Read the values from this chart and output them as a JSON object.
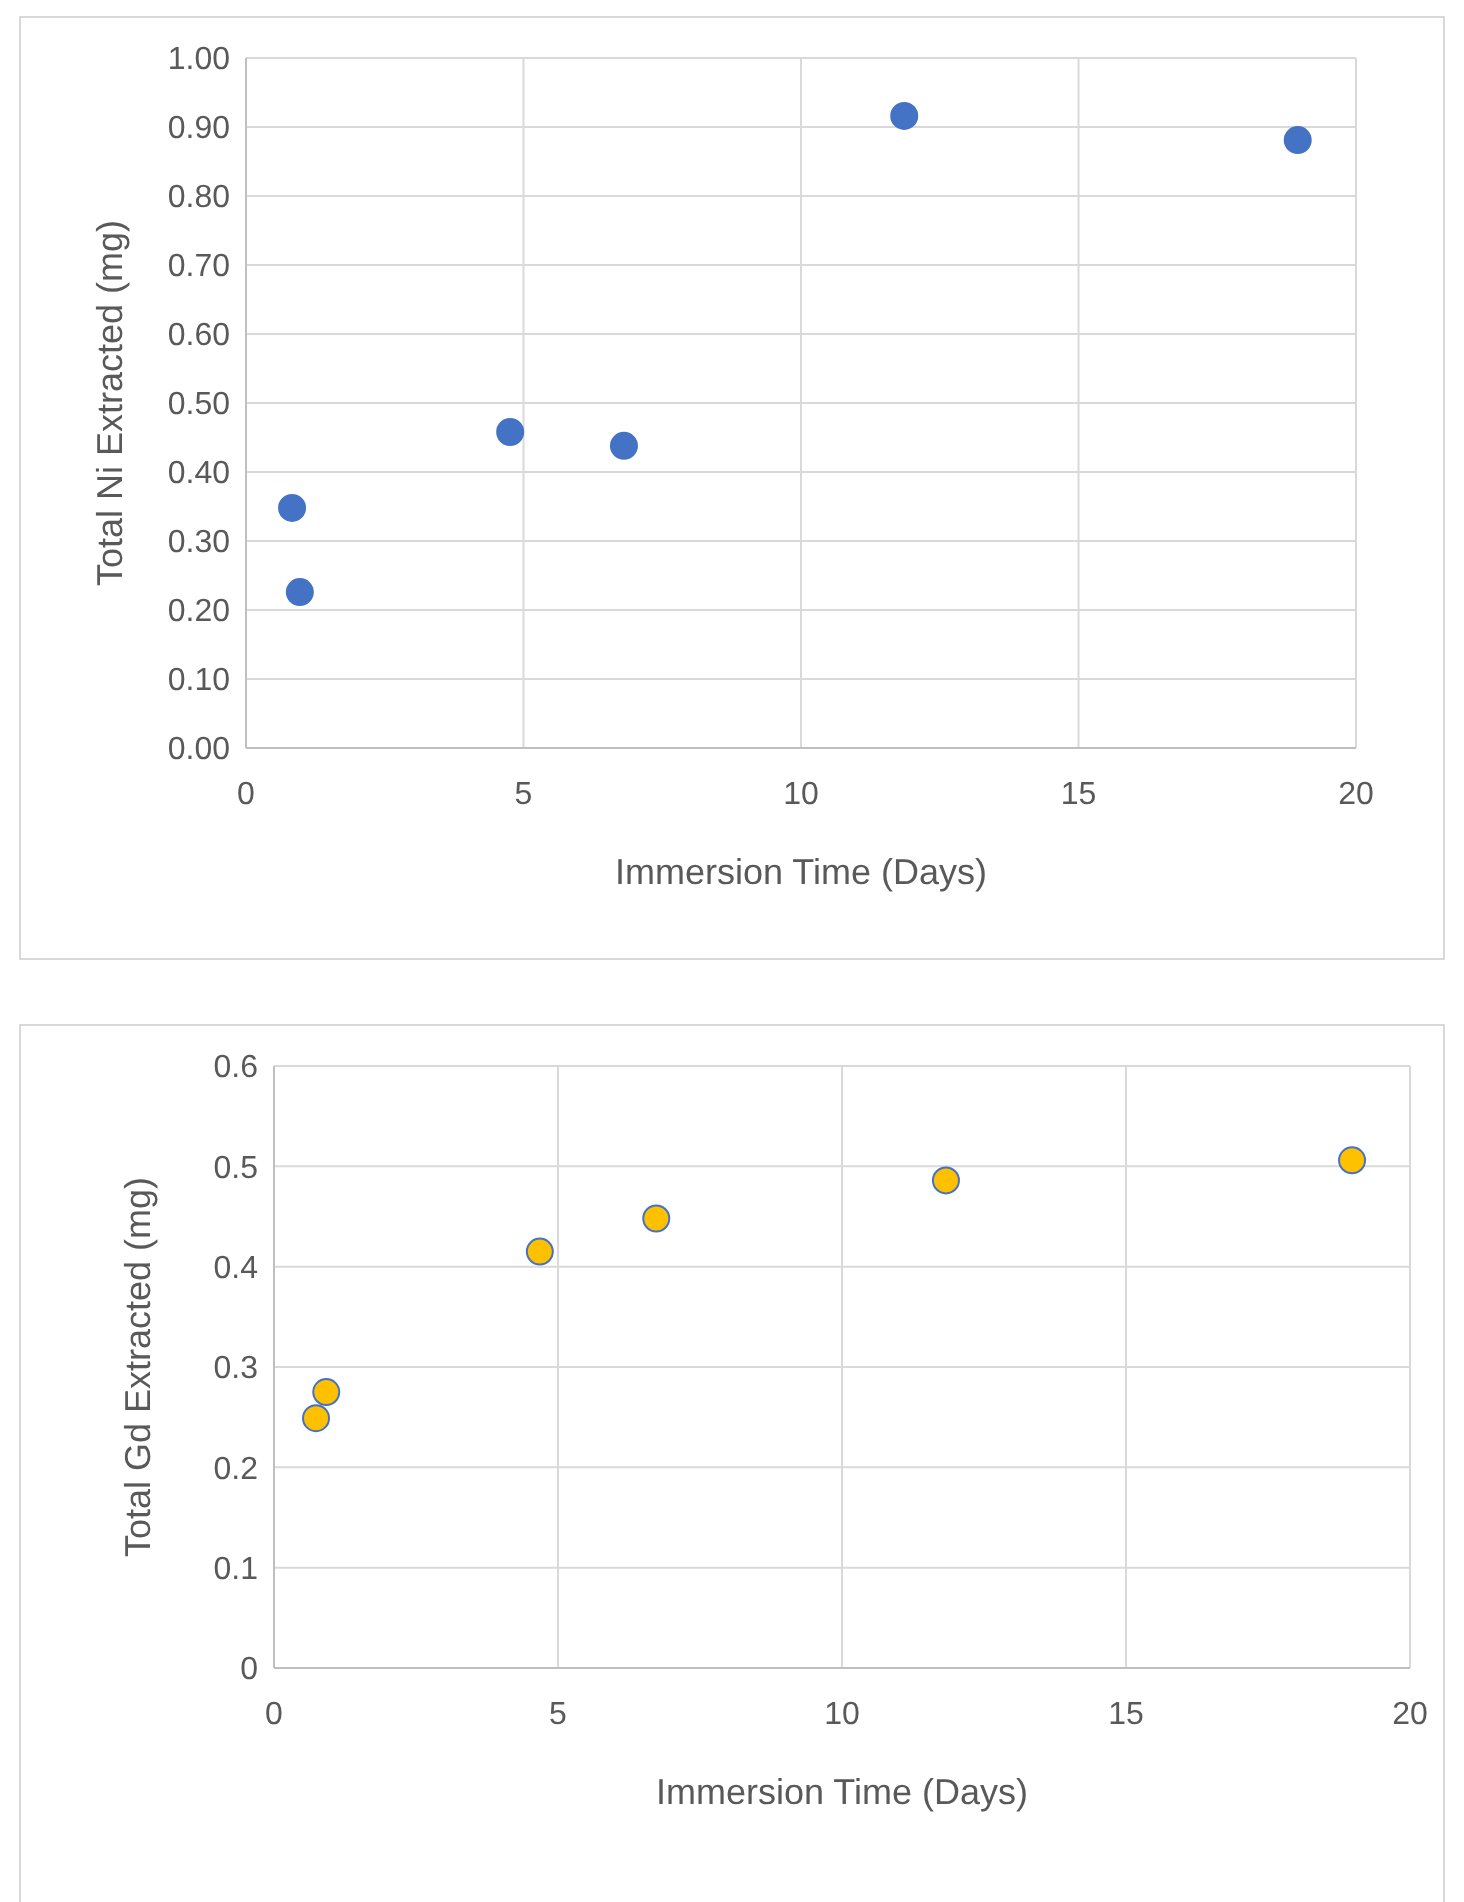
{
  "chart_data": [
    {
      "type": "scatter",
      "xlabel": "Immersion Time (Days)",
      "ylabel": "Total Ni Extracted (mg)",
      "xlim": [
        0,
        20
      ],
      "xticks": [
        0,
        5,
        10,
        15,
        20
      ],
      "ylim": [
        0,
        1
      ],
      "yticks": [
        {
          "value": 0,
          "label": "0.00"
        },
        {
          "value": 0.1,
          "label": "0.10"
        },
        {
          "value": 0.2,
          "label": "0.20"
        },
        {
          "value": 0.3,
          "label": "0.30"
        },
        {
          "value": 0.4,
          "label": "0.40"
        },
        {
          "value": 0.5,
          "label": "0.50"
        },
        {
          "value": 0.6,
          "label": "0.60"
        },
        {
          "value": 0.7,
          "label": "0.70"
        },
        {
          "value": 0.8,
          "label": "0.80"
        },
        {
          "value": 0.9,
          "label": "0.90"
        },
        {
          "value": 1,
          "label": "1.00"
        }
      ],
      "grid": true,
      "marker": "circle",
      "series": [
        {
          "color": "#4472c4",
          "x": [
            0.83,
            0.97,
            4.76,
            6.81,
            11.86,
            18.95
          ],
          "values": [
            0.348,
            0.226,
            0.458,
            0.438,
            0.916,
            0.881
          ]
        }
      ]
    },
    {
      "type": "scatter",
      "xlabel": "Immersion Time (Days)",
      "ylabel": "Total Gd Extracted (mg)",
      "xlim": [
        0,
        20
      ],
      "xticks": [
        0,
        5,
        10,
        15,
        20
      ],
      "ylim": [
        0,
        0.6
      ],
      "yticks": [
        0,
        0.1,
        0.2,
        0.3,
        0.4,
        0.5,
        0.6
      ],
      "grid": true,
      "marker": "circle",
      "series": [
        {
          "color": "#ffc000",
          "x": [
            0.74,
            0.92,
            4.68,
            6.73,
            11.83,
            18.98
          ],
          "values": [
            0.249,
            0.275,
            0.415,
            0.448,
            0.486,
            0.506
          ]
        }
      ]
    }
  ]
}
